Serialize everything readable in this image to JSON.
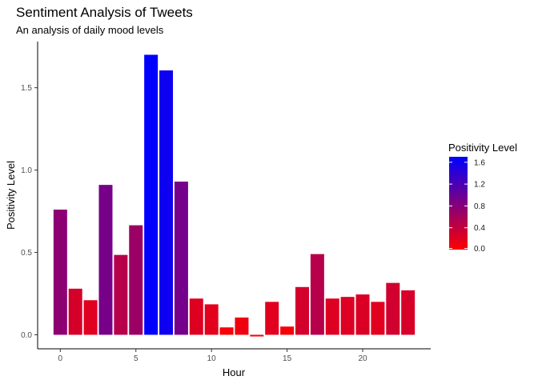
{
  "chart_data": {
    "type": "bar",
    "title": "Sentiment Analysis of Tweets",
    "subtitle": "An analysis of daily mood levels",
    "xlabel": "Hour",
    "ylabel": "Positivity Level",
    "x": [
      0,
      1,
      2,
      3,
      4,
      5,
      6,
      7,
      8,
      9,
      10,
      11,
      12,
      13,
      14,
      15,
      16,
      17,
      18,
      19,
      20,
      21,
      22,
      23
    ],
    "values": [
      0.76,
      0.28,
      0.21,
      0.91,
      0.485,
      0.665,
      1.7,
      1.605,
      0.93,
      0.22,
      0.185,
      0.045,
      0.105,
      -0.01,
      0.2,
      0.05,
      0.29,
      0.49,
      0.22,
      0.23,
      0.245,
      0.2,
      0.315,
      0.27
    ],
    "xlim": [
      -1.5,
      24.5
    ],
    "ylim": [
      -0.085,
      1.78
    ],
    "x_ticks": [
      0,
      5,
      10,
      15,
      20
    ],
    "x_tick_labels": [
      "0",
      "5",
      "10",
      "15",
      "20"
    ],
    "y_ticks": [
      0.0,
      0.5,
      1.0,
      1.5
    ],
    "y_tick_labels": [
      "0.0",
      "0.5",
      "1.0",
      "1.5"
    ],
    "grid": false,
    "legend": {
      "title": "Positivity Level",
      "placement": "right",
      "type": "colorbar",
      "range": [
        0.0,
        1.7
      ],
      "labels": [
        "0.0",
        "0.4",
        "0.8",
        "1.2",
        "1.6"
      ],
      "label_values": [
        0.0,
        0.4,
        0.8,
        1.2,
        1.6
      ],
      "low_color": "#ff0000",
      "high_color": "#0000ff"
    }
  }
}
